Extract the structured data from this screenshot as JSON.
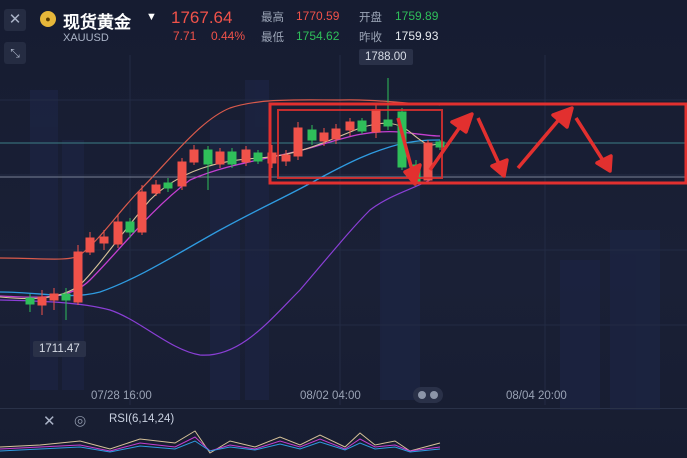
{
  "header": {
    "symbol_name": "现货黄金",
    "symbol_code": "XAUUSD",
    "price": "1767.64",
    "change": "7.71",
    "change_pct": "0.44%",
    "stats": {
      "high_label": "最高",
      "high_value": "1770.59",
      "low_label": "最低",
      "low_value": "1754.62",
      "open_label": "开盘",
      "open_value": "1759.89",
      "prev_close_label": "昨收",
      "prev_close_value": "1759.93"
    }
  },
  "chart": {
    "high_marker": "1788.00",
    "low_marker": "1711.47",
    "x_labels": [
      "07/28 16:00",
      "08/02 04:00",
      "08/04 20:00"
    ]
  },
  "indicator": {
    "label": "RSI(6,14,24)"
  },
  "colors": {
    "up": "#f0524a",
    "down": "#2fbf5a",
    "accent": "#e7b73a",
    "box": "#e2302f"
  },
  "icons": {
    "close": "close-icon",
    "collapse": "collapse-icon",
    "symbol": "gold-coin-icon",
    "caret": "caret-down-icon",
    "eye": "eye-icon"
  }
}
